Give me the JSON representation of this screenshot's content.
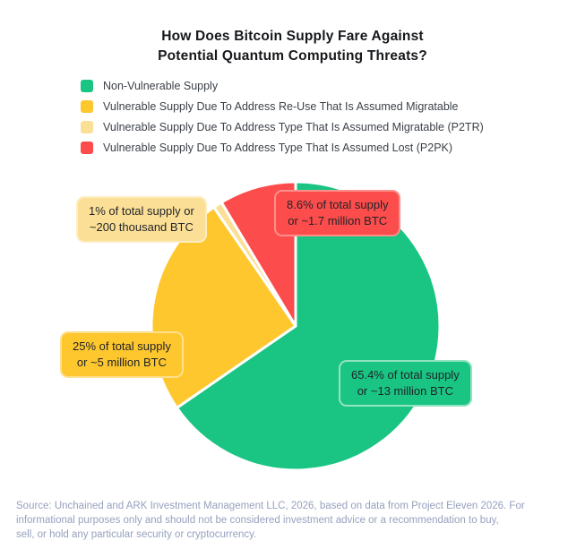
{
  "title": {
    "lines": [
      "How Does Bitcoin Supply Fare Against",
      "Potential Quantum Computing Threats?"
    ]
  },
  "legend": {
    "items": [
      {
        "label": "Non-Vulnerable Supply"
      },
      {
        "label": "Vulnerable Supply Due To Address Re-Use That Is Assumed Migratable"
      },
      {
        "label": "Vulnerable Supply Due To Address Type That Is Assumed Migratable (P2TR)"
      },
      {
        "label": "Vulnerable Supply Due To Address Type That Is Assumed Lost (P2PK)"
      }
    ]
  },
  "chart_data": {
    "type": "pie",
    "title": "How Does Bitcoin Supply Fare Against Potential Quantum Computing Threats?",
    "start_angle_deg": -90,
    "direction": "clockwise",
    "slices": [
      {
        "label": "Non-Vulnerable Supply",
        "percent": 65.4,
        "amount": "~13 million BTC",
        "color": "#1AC583",
        "callout_border": "#93E2C1"
      },
      {
        "label": "Vulnerable Supply Due To Address Re-Use That Is Assumed Migratable",
        "percent": 25,
        "amount": "~5 million BTC",
        "color": "#FEC72E",
        "callout_border": "#FEDF8D"
      },
      {
        "label": "Vulnerable Supply Due To Address Type That Is Assumed Migratable (P2TR)",
        "percent": 1,
        "amount": "~200 thousand BTC",
        "color": "#FCDF96",
        "callout_border": "#FDEDC2"
      },
      {
        "label": "Vulnerable Supply Due To Address Type That Is Assumed Lost (P2PK)",
        "percent": 8.6,
        "amount": "~1.7 million BTC",
        "color": "#FC4C4C",
        "callout_border": "#FD8F8B"
      }
    ]
  },
  "callouts": [
    {
      "slice": 0,
      "line1": "65.4% of total supply",
      "line2": "or ~13 million BTC"
    },
    {
      "slice": 1,
      "line1": "25% of total supply",
      "line2": "or ~5 million BTC"
    },
    {
      "slice": 2,
      "line1": "1% of total supply or",
      "line2": "~200 thousand BTC"
    },
    {
      "slice": 3,
      "line1": "8.6% of total supply",
      "line2": "or ~1.7 million BTC"
    }
  ],
  "source": {
    "lines": [
      "Source: Unchained and ARK Investment Management LLC, 2026, based on data from Project Eleven 2026. For",
      "informational purposes only and should not be considered investment advice or a recommendation to buy,",
      "sell, or hold any particular security or cryptocurrency."
    ]
  }
}
